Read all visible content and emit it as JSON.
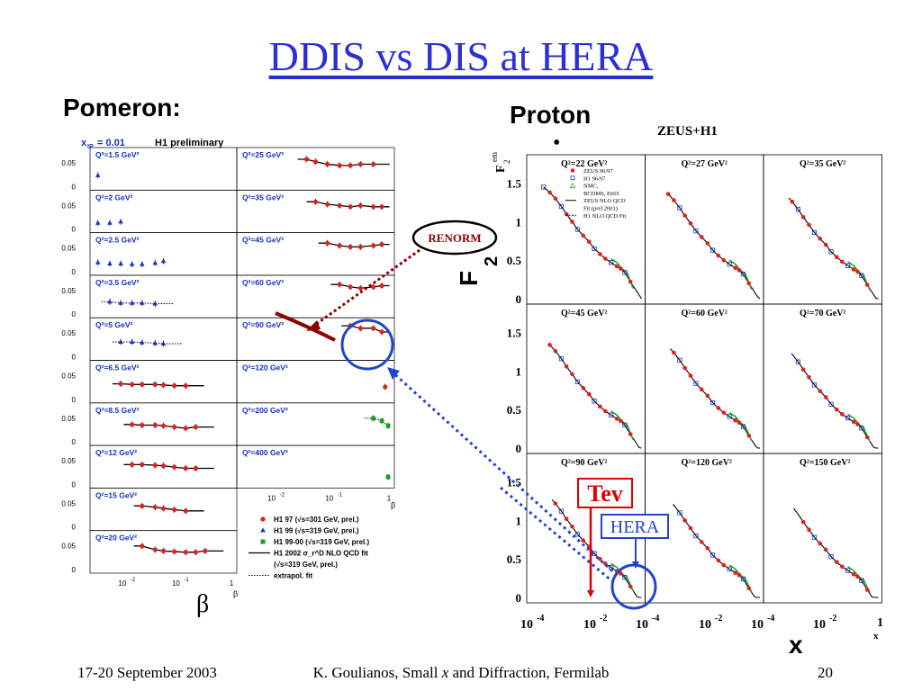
{
  "slide": {
    "title": "DDIS vs DIS at HERA",
    "pomeron_heading": "Pomeron:",
    "proton_heading": "Proton",
    "proton_bullet": "•"
  },
  "footer": {
    "date": "17-20 September 2003",
    "center_prefix": "K. Goulianos, Small ",
    "center_italic": "x",
    "center_suffix": " and Diffraction, Fermilab",
    "page": "20"
  },
  "annotations": {
    "renorm": "RENORM",
    "tev": "Tev",
    "hera": "HERA",
    "beta_symbol": "β",
    "x_symbol": "x",
    "f2_label": "F",
    "f2_sub": "2"
  },
  "colors": {
    "title_blue": "#2b2fd6",
    "renorm_arrow": "#8b0000",
    "tev_red": "#e00000",
    "hera_blue": "#2244cc",
    "h1_97_red": "#e02020",
    "h1_99_blue": "#1530c8",
    "h1_99_00_green": "#18a018",
    "fit_green": "#20b020"
  },
  "chart_data": [
    {
      "type": "scatter",
      "name": "H1 diffractive structure function",
      "header": "x",
      "header_sub": "IP",
      "header_value": "= 0.01",
      "header_title": "H1 preliminary",
      "xlabel": "β",
      "x_scale": "log",
      "x_ticks": [
        "10",
        "10",
        "1"
      ],
      "x_tick_exps": [
        "-2",
        "-1",
        ""
      ],
      "y_ticks": [
        "0",
        "0.05"
      ],
      "panels": [
        {
          "q2": "Q²=1.5 GeV²",
          "col": 0,
          "points": [
            [
              0.003,
              0.018
            ]
          ],
          "series": [
            "h1_99"
          ],
          "curve": "none"
        },
        {
          "q2": "Q²=2 GeV²",
          "col": 0,
          "points": [
            [
              0.003,
              0.01
            ],
            [
              0.005,
              0.01
            ],
            [
              0.008,
              0.012
            ]
          ],
          "series": [
            "h1_99"
          ],
          "curve": "none"
        },
        {
          "q2": "Q²=2.5 GeV²",
          "col": 0,
          "points": [
            [
              0.003,
              0.015
            ],
            [
              0.005,
              0.013
            ],
            [
              0.008,
              0.013
            ],
            [
              0.013,
              0.012
            ],
            [
              0.02,
              0.012
            ],
            [
              0.035,
              0.014
            ],
            [
              0.05,
              0.017
            ]
          ],
          "series": [
            "h1_99"
          ],
          "curve": "none"
        },
        {
          "q2": "Q²=3.5 GeV²",
          "col": 0,
          "points": [
            [
              0.005,
              0.02
            ],
            [
              0.008,
              0.018
            ],
            [
              0.013,
              0.018
            ],
            [
              0.02,
              0.018
            ],
            [
              0.035,
              0.017
            ]
          ],
          "series": [
            "h1_99"
          ],
          "curve": "dotted"
        },
        {
          "q2": "Q²=5 GeV²",
          "col": 0,
          "points": [
            [
              0.008,
              0.024
            ],
            [
              0.013,
              0.024
            ],
            [
              0.02,
              0.023
            ],
            [
              0.035,
              0.022
            ],
            [
              0.05,
              0.021
            ]
          ],
          "series": [
            "h1_99"
          ],
          "curve": "dotted"
        },
        {
          "q2": "Q²=6.5 GeV²",
          "col": 0,
          "points": [
            [
              0.008,
              0.025
            ],
            [
              0.013,
              0.024
            ],
            [
              0.02,
              0.024
            ],
            [
              0.035,
              0.024
            ],
            [
              0.05,
              0.023
            ],
            [
              0.08,
              0.022
            ],
            [
              0.13,
              0.022
            ]
          ],
          "series": [
            "h1_97"
          ],
          "curve": "solid"
        },
        {
          "q2": "Q²=8.5 GeV²",
          "col": 0,
          "points": [
            [
              0.013,
              0.028
            ],
            [
              0.02,
              0.027
            ],
            [
              0.035,
              0.027
            ],
            [
              0.05,
              0.026
            ],
            [
              0.08,
              0.024
            ],
            [
              0.13,
              0.022
            ],
            [
              0.2,
              0.024
            ]
          ],
          "series": [
            "h1_97"
          ],
          "curve": "solid"
        },
        {
          "q2": "Q²=12 GeV²",
          "col": 0,
          "points": [
            [
              0.013,
              0.032
            ],
            [
              0.02,
              0.032
            ],
            [
              0.035,
              0.031
            ],
            [
              0.05,
              0.03
            ],
            [
              0.08,
              0.028
            ],
            [
              0.13,
              0.026
            ],
            [
              0.2,
              0.026
            ]
          ],
          "series": [
            "h1_97"
          ],
          "curve": "solid"
        },
        {
          "q2": "Q²=15 GeV²",
          "col": 0,
          "points": [
            [
              0.02,
              0.034
            ],
            [
              0.035,
              0.032
            ],
            [
              0.05,
              0.03
            ],
            [
              0.08,
              0.028
            ],
            [
              0.13,
              0.026
            ]
          ],
          "series": [
            "h1_97"
          ],
          "curve": "solid"
        },
        {
          "q2": "Q²=20 GeV²",
          "col": 0,
          "points": [
            [
              0.02,
              0.038
            ],
            [
              0.035,
              0.032
            ],
            [
              0.05,
              0.03
            ],
            [
              0.08,
              0.029
            ],
            [
              0.13,
              0.028
            ],
            [
              0.2,
              0.028
            ],
            [
              0.3,
              0.03
            ]
          ],
          "series": [
            "h1_97"
          ],
          "curve": "solid"
        },
        {
          "q2": "Q²=25 GeV²",
          "col": 1,
          "points": [
            [
              0.035,
              0.044
            ],
            [
              0.05,
              0.04
            ],
            [
              0.08,
              0.036
            ],
            [
              0.13,
              0.034
            ],
            [
              0.2,
              0.034
            ],
            [
              0.3,
              0.036
            ],
            [
              0.5,
              0.036
            ]
          ],
          "series": [
            "h1_97"
          ],
          "curve": "solid"
        },
        {
          "q2": "Q²=35 GeV²",
          "col": 1,
          "points": [
            [
              0.05,
              0.044
            ],
            [
              0.08,
              0.04
            ],
            [
              0.13,
              0.038
            ],
            [
              0.2,
              0.036
            ],
            [
              0.3,
              0.038
            ],
            [
              0.5,
              0.036
            ],
            [
              0.7,
              0.036
            ]
          ],
          "series": [
            "h1_97"
          ],
          "curve": "solid"
        },
        {
          "q2": "Q²=45 GeV²",
          "col": 1,
          "points": [
            [
              0.08,
              0.046
            ],
            [
              0.13,
              0.042
            ],
            [
              0.2,
              0.04
            ],
            [
              0.3,
              0.04
            ],
            [
              0.5,
              0.042
            ],
            [
              0.7,
              0.044
            ]
          ],
          "series": [
            "h1_97"
          ],
          "curve": "solid"
        },
        {
          "q2": "Q²=60 GeV²",
          "col": 1,
          "points": [
            [
              0.13,
              0.048
            ],
            [
              0.2,
              0.044
            ],
            [
              0.3,
              0.042
            ],
            [
              0.5,
              0.044
            ],
            [
              0.7,
              0.046
            ]
          ],
          "series": [
            "h1_97"
          ],
          "curve": "solid"
        },
        {
          "q2": "Q²=90 GeV²",
          "col": 1,
          "points": [
            [
              0.2,
              0.05
            ],
            [
              0.3,
              0.046
            ],
            [
              0.5,
              0.046
            ],
            [
              0.7,
              0.04
            ]
          ],
          "series": [
            "h1_97"
          ],
          "curve": "solid"
        },
        {
          "q2": "Q²=120 GeV²",
          "col": 1,
          "points": [
            [
              0.8,
              0.02
            ]
          ],
          "series": [
            "h1_97"
          ],
          "curve": "solid"
        },
        {
          "q2": "Q²=200 GeV²",
          "col": 1,
          "points": [
            [
              0.5,
              0.038
            ],
            [
              0.7,
              0.034
            ],
            [
              0.9,
              0.026
            ]
          ],
          "series": [
            "h1_99_00"
          ],
          "curve": "dotted"
        },
        {
          "q2": "Q²=400 GeV²",
          "col": 1,
          "points": [
            [
              0.9,
              0.012
            ]
          ],
          "series": [
            "h1_99_00"
          ],
          "curve": "dotted"
        }
      ],
      "legend": [
        {
          "key": "h1_97",
          "label": "H1 97 (√s=301 GeV, prel.)"
        },
        {
          "key": "h1_99",
          "label": "H1 99 (√s=319 GeV, prel.)"
        },
        {
          "key": "h1_99_00",
          "label": "H1 99-00 (√s=319 GeV, prel.)"
        },
        {
          "key": "fit",
          "label": "H1 2002 σ_r^D NLO QCD fit"
        },
        {
          "key": "fit2",
          "label": "(√s=319 GeV, prel.)"
        },
        {
          "key": "extrap",
          "label": "extrapol. fit"
        }
      ]
    },
    {
      "type": "scatter",
      "name": "ZEUS+H1 proton structure function",
      "header_title": "ZEUS+H1",
      "ylabel": "F",
      "ylabel_sup": "em",
      "ylabel_sub": "2",
      "xlabel": "x",
      "x_scale": "log",
      "xlim": [
        0.0001,
        1
      ],
      "ylim": [
        0,
        1.8
      ],
      "y_ticks": [
        "0",
        "0.5",
        "1",
        "1.5"
      ],
      "x_ticks": [
        "10",
        "10",
        "10",
        "10",
        "10",
        "10",
        "1"
      ],
      "x_tick_exps": [
        "-4",
        "-2",
        "-4",
        "-2",
        "-4",
        "-2",
        ""
      ],
      "panels": [
        {
          "q2": "Q²=22 GeV²",
          "row": 0,
          "col": 0
        },
        {
          "q2": "Q²=27 GeV²",
          "row": 0,
          "col": 1
        },
        {
          "q2": "Q²=35 GeV²",
          "row": 0,
          "col": 2
        },
        {
          "q2": "Q²=45 GeV²",
          "row": 1,
          "col": 0
        },
        {
          "q2": "Q²=60 GeV²",
          "row": 1,
          "col": 1
        },
        {
          "q2": "Q²=70 GeV²",
          "row": 1,
          "col": 2
        },
        {
          "q2": "Q²=90 GeV²",
          "row": 2,
          "col": 0
        },
        {
          "q2": "Q²=120 GeV²",
          "row": 2,
          "col": 1
        },
        {
          "q2": "Q²=150 GeV²",
          "row": 2,
          "col": 2
        }
      ],
      "points_x": [
        0.0003,
        0.0005,
        0.0008,
        0.0013,
        0.002,
        0.0032,
        0.005,
        0.008,
        0.013,
        0.02,
        0.032,
        0.05,
        0.08,
        0.13,
        0.18,
        0.25,
        0.4
      ],
      "points_y": [
        1.45,
        1.38,
        1.3,
        1.2,
        1.1,
        1.0,
        0.9,
        0.82,
        0.74,
        0.65,
        0.58,
        0.52,
        0.47,
        0.42,
        0.39,
        0.34,
        0.22
      ],
      "legend": [
        {
          "key": "zeus",
          "label": "ZEUS 96/97"
        },
        {
          "key": "h1",
          "label": "H1 96/97"
        },
        {
          "key": "nmc",
          "label": "NMC,"
        },
        {
          "key": "bcdms",
          "label": "BCDMS, E665"
        },
        {
          "key": "zeusfit",
          "label": "ZEUS NLO QCD"
        },
        {
          "key": "zeusfit2",
          "label": "Fit (prel.2001)"
        },
        {
          "key": "h1fit",
          "label": "H1 NLO QCD Fit"
        }
      ]
    }
  ]
}
